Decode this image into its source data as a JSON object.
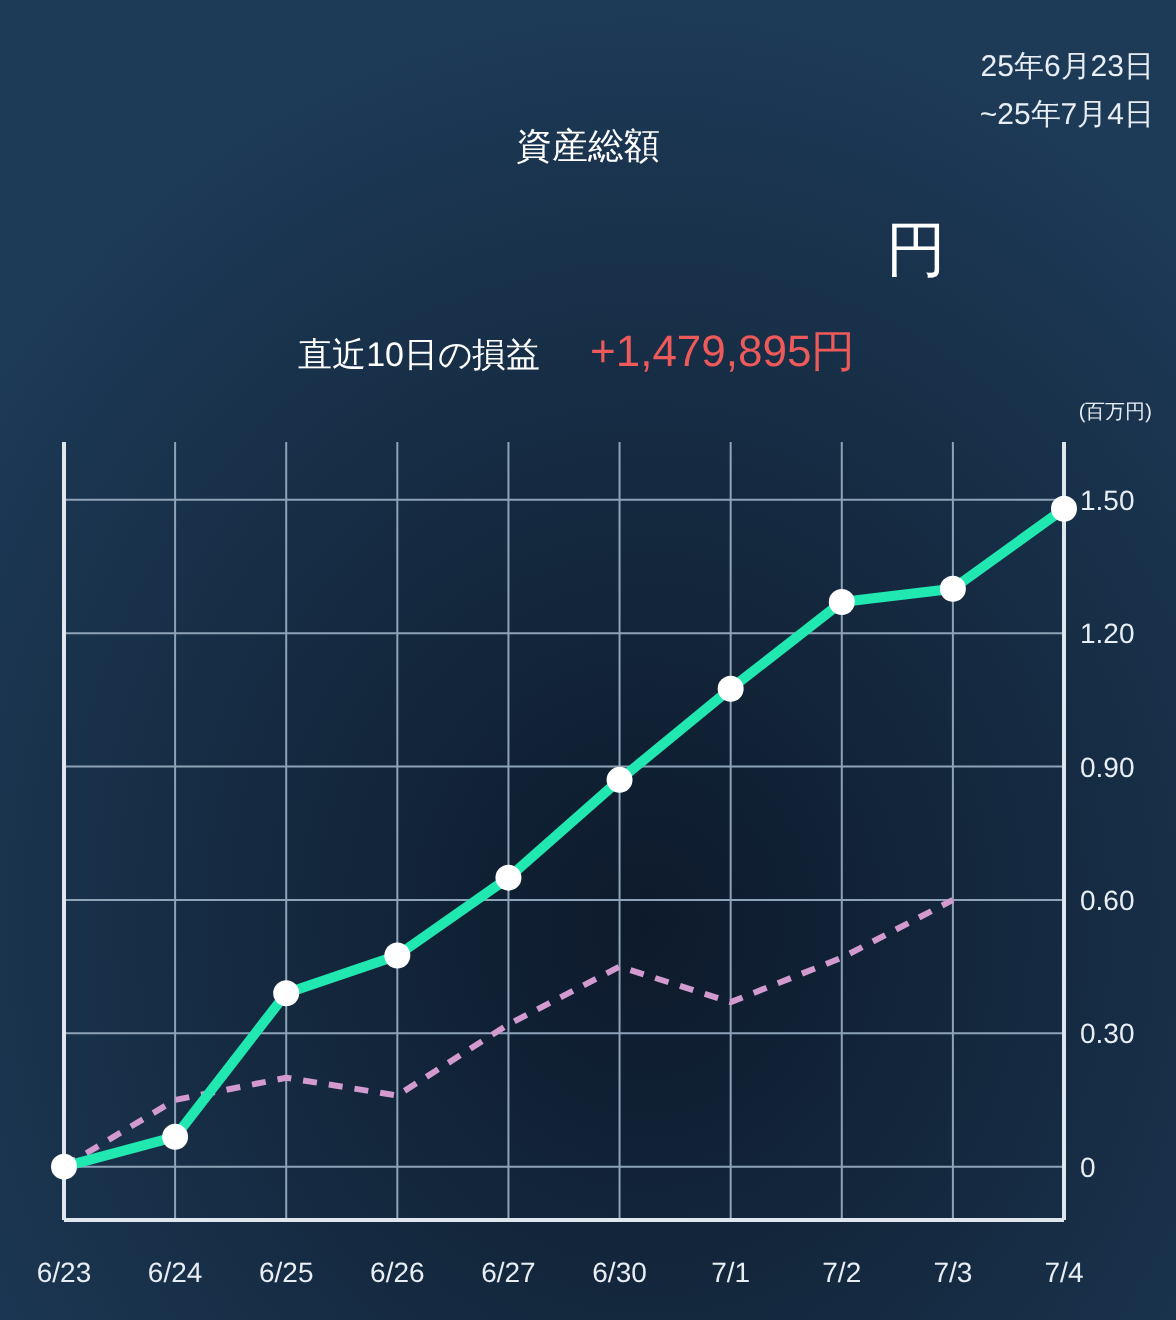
{
  "chart_data": {
    "type": "line",
    "title": "資産総額",
    "ylabel": "(百万円)",
    "annotations": [
      "25年6月23日",
      "~25年7月4日",
      "円",
      "直近10日の損益",
      "+1,479,895円"
    ],
    "categories": [
      "6/23",
      "6/24",
      "6/25",
      "6/26",
      "6/27",
      "6/30",
      "7/1",
      "7/2",
      "7/3",
      "7/4"
    ],
    "series": [
      {
        "color": "#20e8b0",
        "values": [
          0,
          0.067,
          0.39,
          0.475,
          0.65,
          0.87,
          1.075,
          1.27,
          1.3,
          1.48
        ],
        "marker": "circle",
        "line_style": "solid"
      },
      {
        "color": "#d39ad0",
        "values": [
          0,
          0.15,
          0.2,
          0.16,
          0.32,
          0.45,
          0.37,
          0.47,
          0.6,
          null
        ],
        "marker": "none",
        "line_style": "dashed"
      }
    ],
    "ylim": [
      -0.12,
      1.63
    ],
    "yticks": [
      {
        "value": 0,
        "label": "0"
      },
      {
        "value": 0.3,
        "label": "0.30"
      },
      {
        "value": 0.6,
        "label": "0.60"
      },
      {
        "value": 0.9,
        "label": "0.90"
      },
      {
        "value": 1.2,
        "label": "1.20"
      },
      {
        "value": 1.5,
        "label": "1.50"
      }
    ],
    "grid": true
  }
}
